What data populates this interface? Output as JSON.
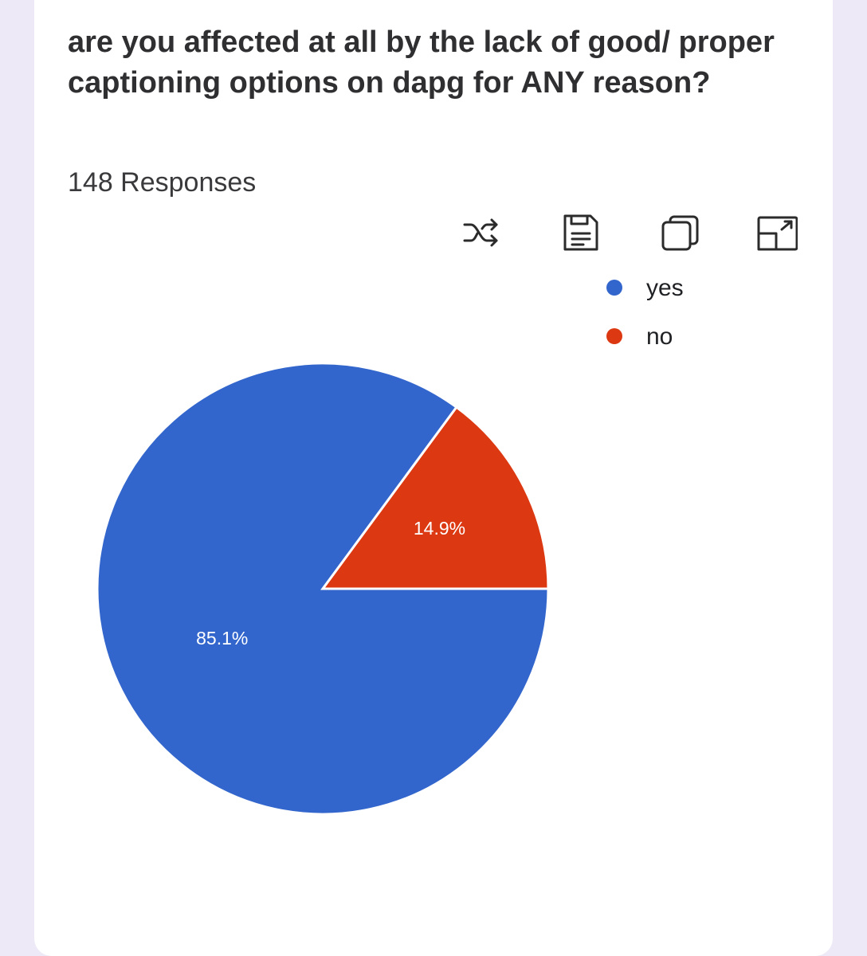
{
  "header": {
    "title": "are you affected at all by the lack of good/ proper captioning options on dapg for ANY reason?",
    "responses": "148 Responses"
  },
  "toolbar": [
    {
      "icon": "shuffle-icon"
    },
    {
      "icon": "save-icon"
    },
    {
      "icon": "copy-icon"
    },
    {
      "icon": "expand-icon"
    }
  ],
  "chart_data": {
    "type": "pie",
    "title": "are you affected at all by the lack of good/ proper captioning options on dapg for ANY reason?",
    "categories": [
      "yes",
      "no"
    ],
    "values": [
      85.1,
      14.9
    ],
    "labels": [
      "85.1%",
      "14.9%"
    ],
    "colors": [
      "#3366cc",
      "#dc3912"
    ],
    "legend_position": "top-right"
  }
}
